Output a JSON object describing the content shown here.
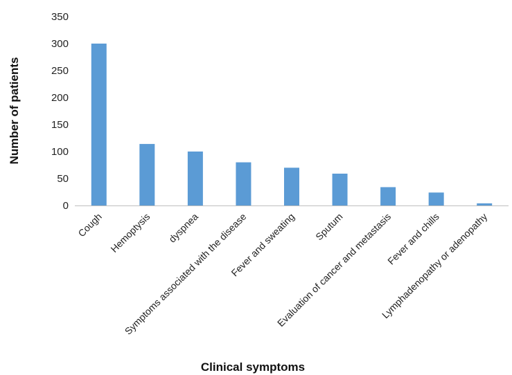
{
  "chart_data": {
    "type": "bar",
    "title": "",
    "xlabel": "Clinical symptoms",
    "ylabel": "Number of patients",
    "categories": [
      "Cough",
      "Hemoptysis",
      "dyspnea",
      "Symptoms associated with the disease",
      "Fever and sweating",
      "Sputum",
      "Evaluation of cancer and metastasis",
      "Fever and chills",
      "Lymphadenopathy or adenopathy"
    ],
    "values": [
      300,
      114,
      100,
      80,
      70,
      59,
      34,
      24,
      4
    ],
    "ylim": [
      0,
      350
    ],
    "yticks": [
      0,
      50,
      100,
      150,
      200,
      250,
      300,
      350
    ],
    "grid": false,
    "legend": "none",
    "bar_color": "#5B9BD5"
  }
}
